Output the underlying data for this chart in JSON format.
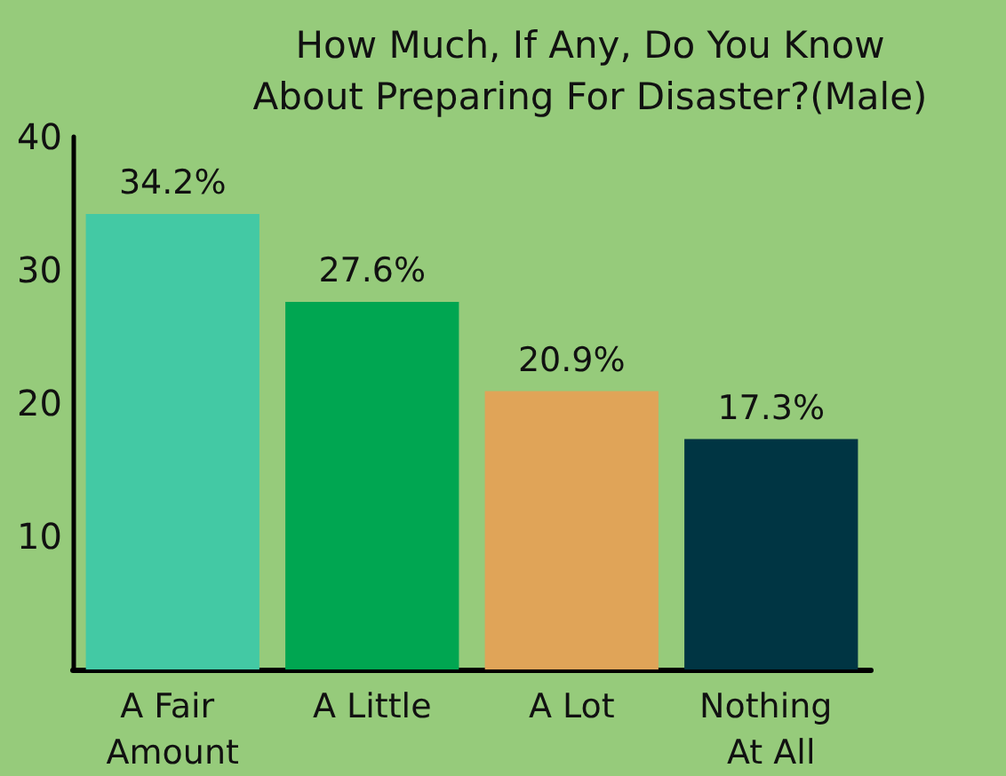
{
  "chart_data": {
    "type": "bar",
    "title": "How Much, If Any, Do You Know About Preparing For Disaster?(Male)",
    "categories": [
      "A Fair Amount",
      "A Little",
      "A Lot",
      "Nothing At All"
    ],
    "values": [
      34.2,
      27.6,
      20.9,
      17.3
    ],
    "colors": [
      "#43c9a4",
      "#00a651",
      "#e0a458",
      "#003543"
    ],
    "value_labels": [
      "34.2%",
      "27.6%",
      "20.9%",
      "17.3%"
    ],
    "ylim": [
      0,
      40
    ],
    "yticks": [
      10,
      20,
      30,
      40
    ]
  }
}
